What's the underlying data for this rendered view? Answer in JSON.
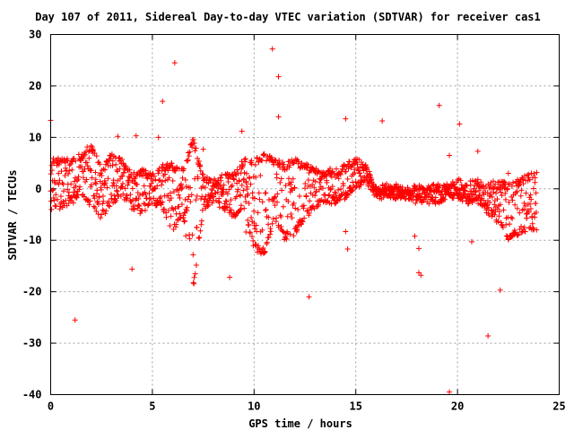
{
  "chart_data": {
    "type": "scatter",
    "title": "Day 107 of 2011, Sidereal Day-to-day VTEC variation (SDTVAR) for receiver cas1",
    "xlabel": "GPS time / hours",
    "ylabel": "SDTVAR / TECUs",
    "xlim": [
      0,
      25
    ],
    "ylim": [
      -40,
      30
    ],
    "x_ticks": [
      "0",
      "5",
      "10",
      "15",
      "20",
      "25"
    ],
    "y_ticks": [
      "30",
      "20",
      "10",
      "0",
      "-10",
      "-20",
      "-30",
      "-40"
    ],
    "grid": true,
    "marker": "+",
    "marker_color": "#ff0000",
    "series": [
      {
        "name": "SDTVAR",
        "outliers": [
          {
            "x": 0.0,
            "y": 13.3
          },
          {
            "x": 1.2,
            "y": -25.5
          },
          {
            "x": 3.3,
            "y": 10.2
          },
          {
            "x": 4.0,
            "y": -15.6
          },
          {
            "x": 4.2,
            "y": 10.3
          },
          {
            "x": 5.3,
            "y": 10.0
          },
          {
            "x": 5.5,
            "y": 17.0
          },
          {
            "x": 6.1,
            "y": 24.5
          },
          {
            "x": 7.5,
            "y": 7.7
          },
          {
            "x": 8.8,
            "y": -17.2
          },
          {
            "x": 9.4,
            "y": 11.2
          },
          {
            "x": 9.6,
            "y": -8.4
          },
          {
            "x": 10.9,
            "y": 27.2
          },
          {
            "x": 11.2,
            "y": 21.8
          },
          {
            "x": 11.2,
            "y": 14.0
          },
          {
            "x": 12.7,
            "y": -21.0
          },
          {
            "x": 14.5,
            "y": 13.6
          },
          {
            "x": 14.5,
            "y": -8.3
          },
          {
            "x": 14.6,
            "y": -11.7
          },
          {
            "x": 16.3,
            "y": 13.2
          },
          {
            "x": 17.9,
            "y": -9.2
          },
          {
            "x": 18.1,
            "y": -11.6
          },
          {
            "x": 18.1,
            "y": -16.3
          },
          {
            "x": 18.2,
            "y": -16.8
          },
          {
            "x": 19.1,
            "y": 16.2
          },
          {
            "x": 19.6,
            "y": -39.5
          },
          {
            "x": 19.6,
            "y": 6.5
          },
          {
            "x": 20.1,
            "y": 12.6
          },
          {
            "x": 20.7,
            "y": -10.3
          },
          {
            "x": 21.0,
            "y": 7.3
          },
          {
            "x": 21.5,
            "y": -28.6
          },
          {
            "x": 22.1,
            "y": -19.7
          },
          {
            "x": 22.5,
            "y": 3.0
          }
        ],
        "profile_hours": [
          0,
          0.5,
          1,
          1.5,
          2,
          2.5,
          3,
          3.5,
          4,
          4.5,
          5,
          5.5,
          6,
          6.5,
          7,
          7.5,
          8,
          8.5,
          9,
          9.5,
          10,
          10.5,
          11,
          11.5,
          12,
          12.5,
          13,
          13.5,
          14,
          14.5,
          15,
          15.5,
          16,
          16.5,
          17,
          17.5,
          18,
          18.5,
          19,
          19.5,
          20,
          20.5,
          21,
          21.5,
          22,
          22.5,
          23,
          23.5,
          24
        ],
        "profile_upper": [
          6,
          6,
          6,
          7,
          9,
          4,
          7,
          6,
          3,
          4,
          3,
          5,
          5,
          4,
          10,
          3,
          2,
          3,
          3,
          6,
          6,
          7,
          6,
          5,
          6,
          5,
          4,
          4,
          4,
          5,
          6,
          5,
          1,
          1,
          1,
          0.5,
          1,
          1,
          1,
          1,
          2,
          2,
          2,
          1,
          2,
          1,
          2,
          3,
          4
        ],
        "profile_lower": [
          -5,
          -4,
          -3,
          -2,
          -4,
          -6,
          -3,
          -2,
          -4,
          -5,
          -3,
          -4,
          -9,
          -5,
          -20,
          -4,
          -3,
          -4,
          -6,
          -4,
          -12,
          -13,
          -6,
          -10,
          -9,
          -6,
          -4,
          -3,
          -3,
          -2,
          0,
          1,
          -2,
          -2,
          -2,
          -2,
          -3,
          -3,
          -3,
          -2,
          -2,
          -3,
          -3,
          -5,
          -7,
          -10,
          -9,
          -8,
          -8
        ]
      }
    ]
  }
}
